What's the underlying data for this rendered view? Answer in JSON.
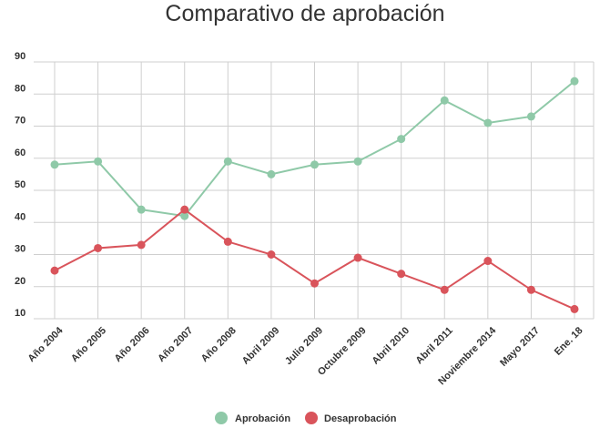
{
  "chart_data": {
    "type": "line",
    "title": "Comparativo de aprobación",
    "categories": [
      "Año 2004",
      "Año 2005",
      "Año 2006",
      "Año 2007",
      "Año 2008",
      "Abril 2009",
      "Julio 2009",
      "Octubre 2009",
      "Abril 2010",
      "Abril 2011",
      "Noviembre 2014",
      "Mayo 2017",
      "Ene. 18"
    ],
    "series": [
      {
        "name": "Aprobación",
        "color": "#8fc9a8",
        "values": [
          58,
          59,
          44,
          42,
          59,
          55,
          58,
          59,
          66,
          78,
          71,
          73,
          84
        ]
      },
      {
        "name": "Desaprobación",
        "color": "#d9545b",
        "values": [
          25,
          32,
          33,
          44,
          34,
          30,
          21,
          29,
          24,
          19,
          28,
          19,
          13
        ]
      }
    ],
    "yticks": [
      10,
      20,
      30,
      40,
      50,
      60,
      70,
      80,
      90
    ],
    "ylim": [
      10,
      90
    ],
    "grid": true,
    "legend": "bottom-center"
  }
}
